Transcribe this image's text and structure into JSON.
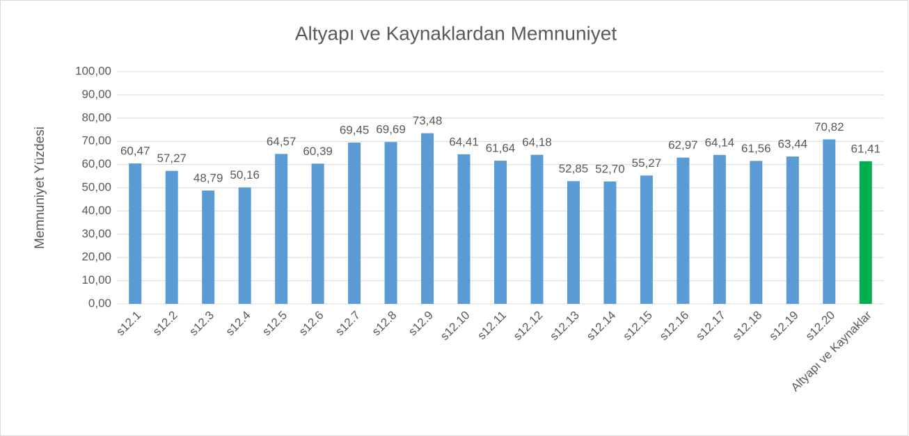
{
  "chart_data": {
    "type": "bar",
    "title": "Altyapı ve Kaynaklardan Memnuniyet",
    "y_label": "Memnuniyet Yüzdesi",
    "categories": [
      "s12.1",
      "s12.2",
      "s12.3",
      "s12.4",
      "s12.5",
      "s12.6",
      "s12.7",
      "s12.8",
      "s12.9",
      "s12.10",
      "s12.11",
      "s12.12",
      "s12.13",
      "s12.14",
      "s12.15",
      "s12.16",
      "s12.17",
      "s12.18",
      "s12.19",
      "s12.20",
      "Altyapı ve Kaynaklar"
    ],
    "values": [
      60.47,
      57.27,
      48.79,
      50.16,
      64.57,
      60.39,
      69.45,
      69.69,
      73.48,
      64.41,
      61.64,
      64.18,
      52.85,
      52.7,
      55.27,
      62.97,
      64.14,
      61.56,
      63.44,
      70.82,
      61.41
    ],
    "value_labels": [
      "60,47",
      "57,27",
      "48,79",
      "50,16",
      "64,57",
      "60,39",
      "69,45",
      "69,69",
      "73,48",
      "64,41",
      "61,64",
      "64,18",
      "52,85",
      "52,70",
      "55,27",
      "62,97",
      "64,14",
      "61,56",
      "63,44",
      "70,82",
      "61,41"
    ],
    "colors": [
      "#5b9bd5",
      "#5b9bd5",
      "#5b9bd5",
      "#5b9bd5",
      "#5b9bd5",
      "#5b9bd5",
      "#5b9bd5",
      "#5b9bd5",
      "#5b9bd5",
      "#5b9bd5",
      "#5b9bd5",
      "#5b9bd5",
      "#5b9bd5",
      "#5b9bd5",
      "#5b9bd5",
      "#5b9bd5",
      "#5b9bd5",
      "#5b9bd5",
      "#5b9bd5",
      "#5b9bd5",
      "#00b050"
    ],
    "ylim": [
      0,
      100
    ],
    "yticks": [
      {
        "value": 0,
        "label": "0,00"
      },
      {
        "value": 10,
        "label": "10,00"
      },
      {
        "value": 20,
        "label": "20,00"
      },
      {
        "value": 30,
        "label": "30,00"
      },
      {
        "value": 40,
        "label": "40,00"
      },
      {
        "value": 50,
        "label": "50,00"
      },
      {
        "value": 60,
        "label": "60,00"
      },
      {
        "value": 70,
        "label": "70,00"
      },
      {
        "value": 80,
        "label": "80,00"
      },
      {
        "value": 90,
        "label": "90,00"
      },
      {
        "value": 100,
        "label": "100,00"
      }
    ],
    "grid": true
  }
}
